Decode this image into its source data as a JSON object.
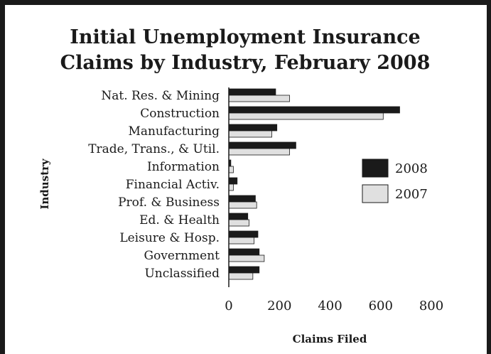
{
  "chart_data": {
    "type": "bar",
    "orientation": "horizontal",
    "title": [
      "Initial Unemployment Insurance",
      "Claims by Industry, February 2008"
    ],
    "xlabel": "Claims Filed",
    "ylabel": "Industry",
    "xlim": [
      0,
      800
    ],
    "xticks": [
      0,
      200,
      400,
      600,
      800
    ],
    "grid": false,
    "legend_position": "right",
    "categories": [
      "Nat. Res. & Mining",
      "Construction",
      "Manufacturing",
      "Trade, Trans., & Util.",
      "Information",
      "Financial Activ.",
      "Prof. & Business",
      "Ed. & Health",
      "Leisure & Hosp.",
      "Government",
      "Unclassified"
    ],
    "series": [
      {
        "name": "2008",
        "color": "#1a1a1a",
        "values": [
          185,
          675,
          190,
          265,
          8,
          33,
          105,
          75,
          115,
          120,
          120
        ]
      },
      {
        "name": "2007",
        "color": "#e0e0e0",
        "values": [
          240,
          610,
          170,
          240,
          18,
          18,
          110,
          80,
          100,
          140,
          95
        ]
      }
    ]
  }
}
